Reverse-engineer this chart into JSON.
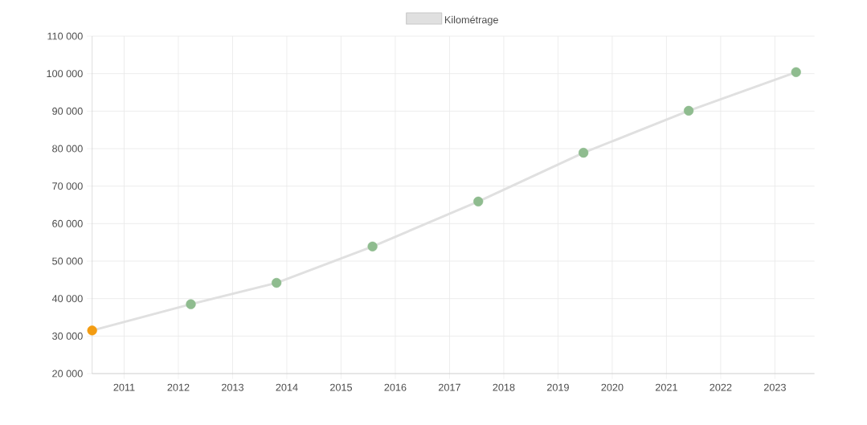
{
  "chart_data": {
    "type": "line",
    "x": [
      2010.41,
      2012.23,
      2013.81,
      2015.58,
      2017.53,
      2019.47,
      2021.41,
      2023.39
    ],
    "series": [
      {
        "name": "Kilométrage",
        "color": "#e0e0e0",
        "colors": [
          "#f39c12",
          "#8fbc8f",
          "#8fbc8f",
          "#8fbc8f",
          "#8fbc8f",
          "#8fbc8f",
          "#8fbc8f",
          "#8fbc8f"
        ],
        "values": [
          31500,
          38500,
          44200,
          53900,
          65900,
          78900,
          90100,
          100400
        ]
      }
    ],
    "xlim": [
      2010.41,
      2023.73
    ],
    "xticks": [
      2011,
      2012,
      2013,
      2014,
      2015,
      2016,
      2017,
      2018,
      2019,
      2020,
      2021,
      2022,
      2023
    ],
    "ylim": [
      20000,
      110000
    ],
    "yticks": [
      {
        "value": 20000,
        "label": "20 000"
      },
      {
        "value": 30000,
        "label": "30 000"
      },
      {
        "value": 40000,
        "label": "40 000"
      },
      {
        "value": 50000,
        "label": "50 000"
      },
      {
        "value": 60000,
        "label": "60 000"
      },
      {
        "value": 70000,
        "label": "70 000"
      },
      {
        "value": 80000,
        "label": "80 000"
      },
      {
        "value": 90000,
        "label": "90 000"
      },
      {
        "value": 100000,
        "label": "100 000"
      },
      {
        "value": 110000,
        "label": "110 000"
      }
    ],
    "grid": true,
    "legend": "top",
    "marker": "circle",
    "line_style": "solid"
  }
}
